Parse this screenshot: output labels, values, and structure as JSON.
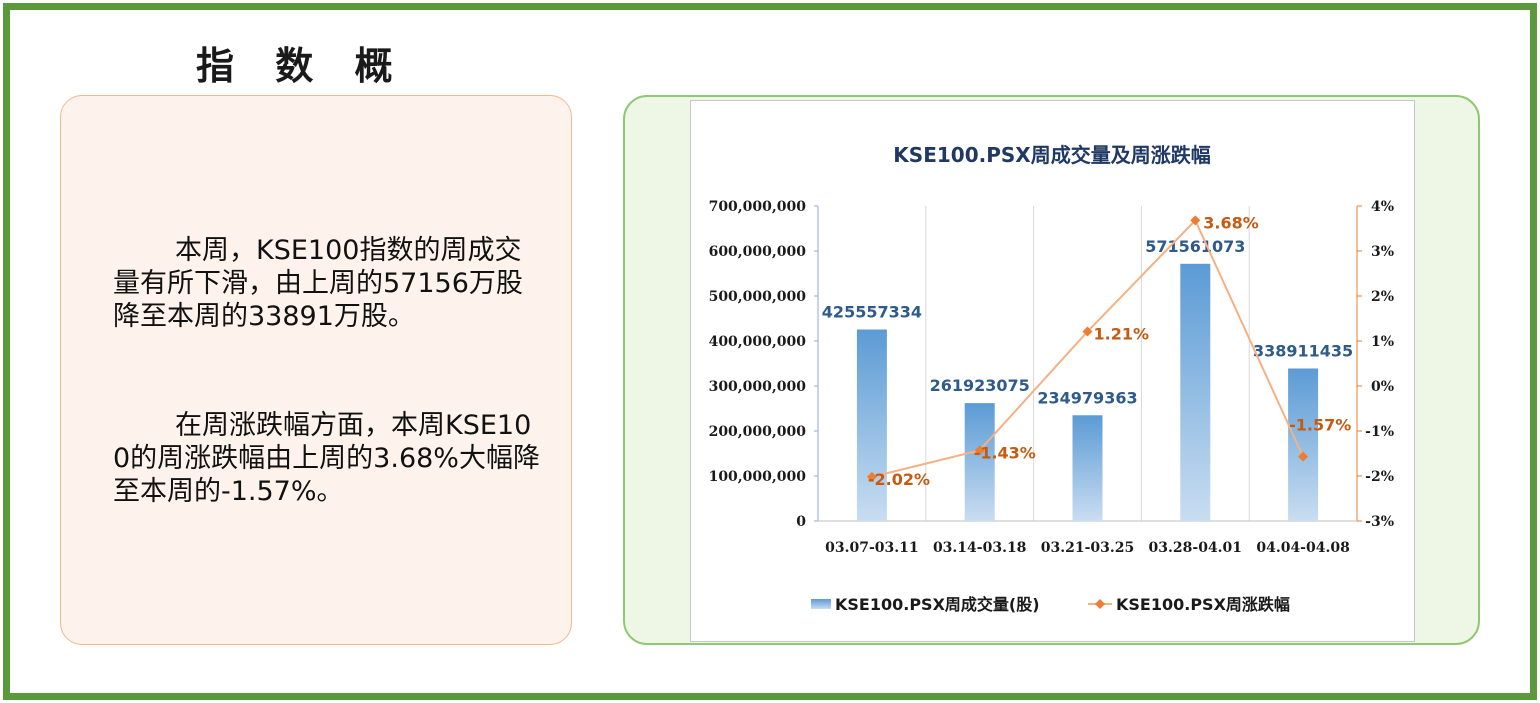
{
  "page": {
    "title": "指 数 概 览",
    "paragraph1": "本周，KSE100指数的周成交量有所下滑，由上周的57156万股降至本周的33891万股。",
    "paragraph2": "在周涨跌幅方面，本周KSE100的周涨跌幅由上周的3.68%大幅降至本周的-1.57%。"
  },
  "colors": {
    "frame": "#5a9a3c",
    "bar": "#5b9bd5",
    "line": "#f4b183",
    "marker": "#ed7d31",
    "bar_label": "#2e5a8c",
    "line_label": "#c55a11"
  },
  "chart_data": {
    "type": "bar+line",
    "title": "KSE100.PSX周成交量及周涨跌幅",
    "categories": [
      "03.07-03.11",
      "03.14-03.18",
      "03.21-03.25",
      "03.28-04.01",
      "04.04-04.08"
    ],
    "series": [
      {
        "name": "KSE100.PSX周成交量(股)",
        "type": "bar",
        "axis": "left",
        "values": [
          425557334,
          261923075,
          234979363,
          571561073,
          338911435
        ],
        "labels": [
          "425557334",
          "261923075",
          "234979363",
          "571561073",
          "338911435"
        ]
      },
      {
        "name": "KSE100.PSX周涨跌幅",
        "type": "line",
        "axis": "right",
        "values": [
          -2.02,
          -1.43,
          1.21,
          3.68,
          -1.57
        ],
        "labels": [
          "-2.02%",
          "-1.43%",
          "1.21%",
          "3.68%",
          "-1.57%"
        ]
      }
    ],
    "y_left": {
      "min": 0,
      "max": 700000000,
      "ticks": [
        "0",
        "100,000,000",
        "200,000,000",
        "300,000,000",
        "400,000,000",
        "500,000,000",
        "600,000,000",
        "700,000,000"
      ]
    },
    "y_right": {
      "min": -3,
      "max": 4,
      "ticks": [
        "-3%",
        "-2%",
        "-1%",
        "0%",
        "1%",
        "2%",
        "3%",
        "4%"
      ]
    },
    "grid": "vertical",
    "legend": "bottom"
  }
}
